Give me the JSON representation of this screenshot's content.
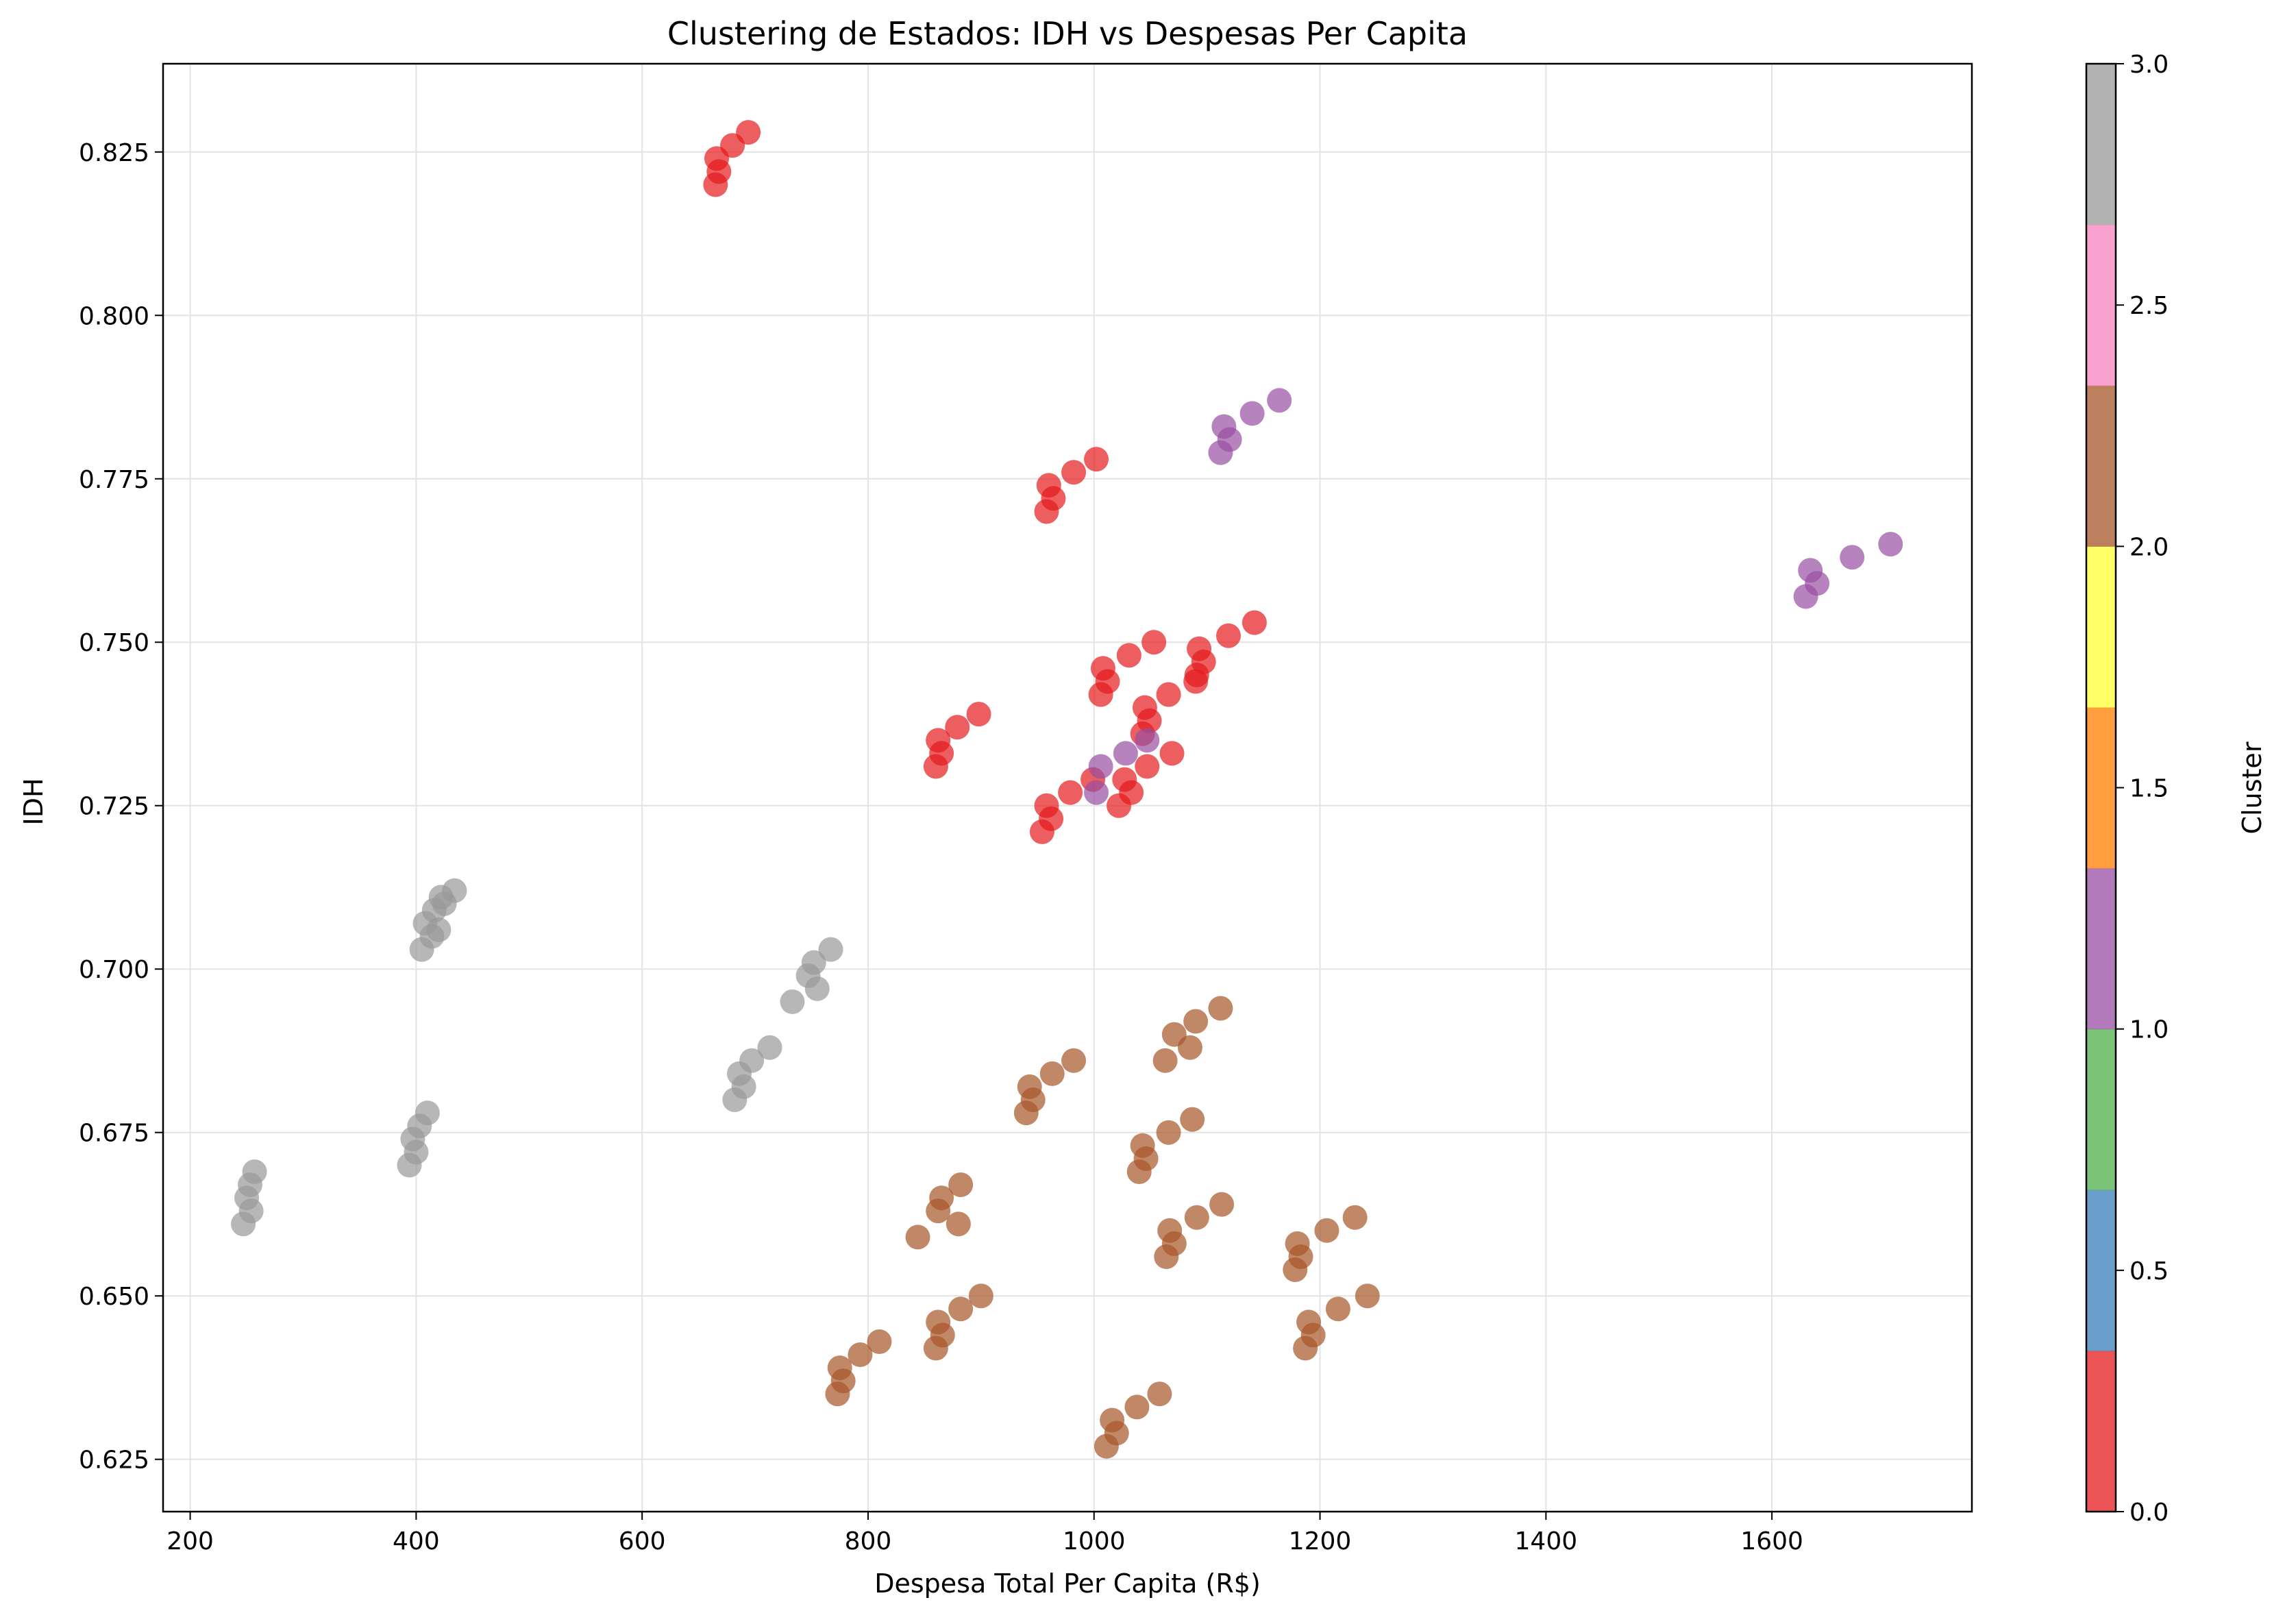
{
  "chart_data": {
    "type": "scatter",
    "title": "Clustering de Estados: IDH vs Despesas Per Capita",
    "xlabel": "Despesa Total Per Capita (R$)",
    "ylabel": "IDH",
    "xlim": [
      176,
      1777
    ],
    "ylim": [
      0.617,
      0.8385
    ],
    "x_ticks": [
      200,
      400,
      600,
      800,
      1000,
      1200,
      1400,
      1600
    ],
    "y_ticks": [
      0.625,
      0.65,
      0.675,
      0.7,
      0.725,
      0.75,
      0.775,
      0.8,
      0.825
    ],
    "x_tick_labels": [
      "200",
      "400",
      "600",
      "800",
      "1000",
      "1200",
      "1400",
      "1600"
    ],
    "y_tick_labels": [
      "0.625",
      "0.650",
      "0.675",
      "0.700",
      "0.725",
      "0.750",
      "0.775",
      "0.800",
      "0.825"
    ],
    "grid": true,
    "colormap": "Set1",
    "colors": {
      "cluster_0": "#e41a1c",
      "cluster_1": "#984ea3",
      "cluster_2": "#a65628",
      "cluster_3": "#999999"
    },
    "colorbar": {
      "label": "Cluster",
      "range": [
        0,
        3
      ],
      "ticks": [
        0.0,
        0.5,
        1.0,
        1.5,
        2.0,
        2.5,
        3.0
      ],
      "tick_labels": [
        "0.0",
        "0.5",
        "1.0",
        "1.5",
        "2.0",
        "2.5",
        "3.0"
      ],
      "segments": [
        "#e41a1c",
        "#377eb8",
        "#4daf4a",
        "#984ea3",
        "#ff7f00",
        "#ffff33",
        "#a65628",
        "#f781bf",
        "#999999"
      ]
    },
    "series": [
      {
        "cluster": 0,
        "points": [
          [
            665,
            0.82
          ],
          [
            666,
            0.824
          ],
          [
            668,
            0.822
          ],
          [
            680,
            0.826
          ],
          [
            694,
            0.828
          ],
          [
            958,
            0.77
          ],
          [
            960,
            0.774
          ],
          [
            964,
            0.772
          ],
          [
            982,
            0.776
          ],
          [
            1002,
            0.778
          ],
          [
            860,
            0.731
          ],
          [
            862,
            0.735
          ],
          [
            865,
            0.733
          ],
          [
            879,
            0.737
          ],
          [
            898,
            0.739
          ],
          [
            954,
            0.721
          ],
          [
            958,
            0.725
          ],
          [
            962,
            0.723
          ],
          [
            979,
            0.727
          ],
          [
            999,
            0.729
          ],
          [
            1006,
            0.742
          ],
          [
            1008,
            0.746
          ],
          [
            1012,
            0.744
          ],
          [
            1031,
            0.748
          ],
          [
            1053,
            0.75
          ],
          [
            1022,
            0.725
          ],
          [
            1027,
            0.729
          ],
          [
            1033,
            0.727
          ],
          [
            1047,
            0.731
          ],
          [
            1069,
            0.733
          ],
          [
            1043,
            0.736
          ],
          [
            1045,
            0.74
          ],
          [
            1049,
            0.738
          ],
          [
            1066,
            0.742
          ],
          [
            1090,
            0.744
          ],
          [
            1091,
            0.745
          ],
          [
            1093,
            0.749
          ],
          [
            1097,
            0.747
          ],
          [
            1119,
            0.751
          ],
          [
            1142,
            0.753
          ]
        ]
      },
      {
        "cluster": 1,
        "points": [
          [
            1002,
            0.727
          ],
          [
            1006,
            0.731
          ],
          [
            1028,
            0.733
          ],
          [
            1047,
            0.735
          ],
          [
            1112,
            0.779
          ],
          [
            1115,
            0.783
          ],
          [
            1120,
            0.781
          ],
          [
            1140,
            0.785
          ],
          [
            1164,
            0.787
          ],
          [
            1630,
            0.757
          ],
          [
            1634,
            0.761
          ],
          [
            1640,
            0.759
          ],
          [
            1671,
            0.763
          ],
          [
            1705,
            0.765
          ]
        ]
      },
      {
        "cluster": 2,
        "points": [
          [
            773,
            0.635
          ],
          [
            775,
            0.639
          ],
          [
            778,
            0.637
          ],
          [
            793,
            0.641
          ],
          [
            810,
            0.643
          ],
          [
            860,
            0.642
          ],
          [
            862,
            0.646
          ],
          [
            866,
            0.644
          ],
          [
            882,
            0.648
          ],
          [
            900,
            0.65
          ],
          [
            844,
            0.659
          ],
          [
            862,
            0.663
          ],
          [
            865,
            0.665
          ],
          [
            880,
            0.661
          ],
          [
            882,
            0.667
          ],
          [
            940,
            0.678
          ],
          [
            943,
            0.682
          ],
          [
            946,
            0.68
          ],
          [
            963,
            0.684
          ],
          [
            982,
            0.686
          ],
          [
            1011,
            0.627
          ],
          [
            1016,
            0.631
          ],
          [
            1020,
            0.629
          ],
          [
            1038,
            0.633
          ],
          [
            1058,
            0.635
          ],
          [
            1040,
            0.669
          ],
          [
            1043,
            0.673
          ],
          [
            1046,
            0.671
          ],
          [
            1066,
            0.675
          ],
          [
            1087,
            0.677
          ],
          [
            1064,
            0.656
          ],
          [
            1067,
            0.66
          ],
          [
            1071,
            0.658
          ],
          [
            1091,
            0.662
          ],
          [
            1113,
            0.664
          ],
          [
            1063,
            0.686
          ],
          [
            1071,
            0.69
          ],
          [
            1085,
            0.688
          ],
          [
            1090,
            0.692
          ],
          [
            1112,
            0.694
          ],
          [
            1178,
            0.654
          ],
          [
            1180,
            0.658
          ],
          [
            1183,
            0.656
          ],
          [
            1206,
            0.66
          ],
          [
            1231,
            0.662
          ],
          [
            1187,
            0.642
          ],
          [
            1190,
            0.646
          ],
          [
            1194,
            0.644
          ],
          [
            1216,
            0.648
          ],
          [
            1242,
            0.65
          ]
        ]
      },
      {
        "cluster": 3,
        "points": [
          [
            247,
            0.661
          ],
          [
            250,
            0.665
          ],
          [
            253,
            0.667
          ],
          [
            254,
            0.663
          ],
          [
            257,
            0.669
          ],
          [
            394,
            0.67
          ],
          [
            397,
            0.674
          ],
          [
            400,
            0.672
          ],
          [
            403,
            0.676
          ],
          [
            410,
            0.678
          ],
          [
            405,
            0.703
          ],
          [
            408,
            0.707
          ],
          [
            414,
            0.705
          ],
          [
            416,
            0.709
          ],
          [
            420,
            0.706
          ],
          [
            422,
            0.711
          ],
          [
            425,
            0.71
          ],
          [
            434,
            0.712
          ],
          [
            682,
            0.68
          ],
          [
            686,
            0.684
          ],
          [
            690,
            0.682
          ],
          [
            697,
            0.686
          ],
          [
            713,
            0.688
          ],
          [
            733,
            0.695
          ],
          [
            747,
            0.699
          ],
          [
            752,
            0.701
          ],
          [
            755,
            0.697
          ],
          [
            767,
            0.703
          ]
        ]
      }
    ]
  }
}
